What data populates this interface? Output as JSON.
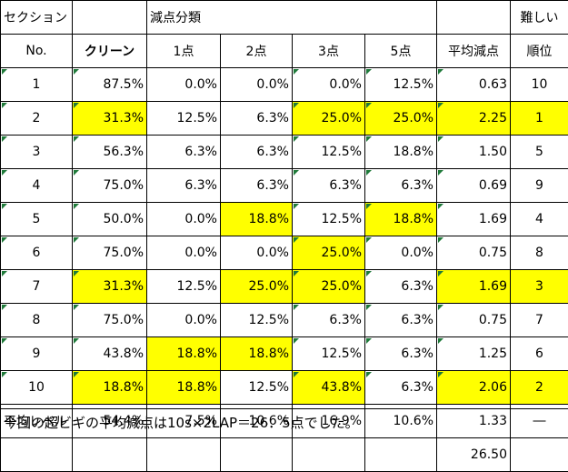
{
  "header": {
    "section": "セクション",
    "category": "減点分類",
    "difficulty": "難しい",
    "no": "No.",
    "clean": "クリーン",
    "p1": "1点",
    "p2": "2点",
    "p3": "3点",
    "p5": "5点",
    "avg": "平均減点",
    "rank": "順位"
  },
  "rows": [
    {
      "no": "1",
      "clean": "87.5%",
      "p1": "0.0%",
      "p2": "0.0%",
      "p3": "0.0%",
      "p5": "12.5%",
      "avg": "0.63",
      "rank": "10"
    },
    {
      "no": "2",
      "clean": "31.3%",
      "p1": "12.5%",
      "p2": "6.3%",
      "p3": "25.0%",
      "p5": "25.0%",
      "avg": "2.25",
      "rank": "1"
    },
    {
      "no": "3",
      "clean": "56.3%",
      "p1": "6.3%",
      "p2": "6.3%",
      "p3": "12.5%",
      "p5": "18.8%",
      "avg": "1.50",
      "rank": "5"
    },
    {
      "no": "4",
      "clean": "75.0%",
      "p1": "6.3%",
      "p2": "6.3%",
      "p3": "6.3%",
      "p5": "6.3%",
      "avg": "0.69",
      "rank": "9"
    },
    {
      "no": "5",
      "clean": "50.0%",
      "p1": "0.0%",
      "p2": "18.8%",
      "p3": "12.5%",
      "p5": "18.8%",
      "avg": "1.69",
      "rank": "4"
    },
    {
      "no": "6",
      "clean": "75.0%",
      "p1": "0.0%",
      "p2": "0.0%",
      "p3": "25.0%",
      "p5": "0.0%",
      "avg": "0.75",
      "rank": "8"
    },
    {
      "no": "7",
      "clean": "31.3%",
      "p1": "12.5%",
      "p2": "25.0%",
      "p3": "25.0%",
      "p5": "6.3%",
      "avg": "1.69",
      "rank": "3"
    },
    {
      "no": "8",
      "clean": "75.0%",
      "p1": "0.0%",
      "p2": "12.5%",
      "p3": "6.3%",
      "p5": "6.3%",
      "avg": "0.75",
      "rank": "7"
    },
    {
      "no": "9",
      "clean": "43.8%",
      "p1": "18.8%",
      "p2": "18.8%",
      "p3": "12.5%",
      "p5": "6.3%",
      "avg": "1.25",
      "rank": "6"
    },
    {
      "no": "10",
      "clean": "18.8%",
      "p1": "18.8%",
      "p2": "12.5%",
      "p3": "43.8%",
      "p5": "6.3%",
      "avg": "2.06",
      "rank": "2"
    }
  ],
  "average_row": {
    "label": "平均レベル",
    "clean": "54.4%",
    "p1": "7.5%",
    "p2": "10.6%",
    "p3": "16.9%",
    "p5": "10.6%",
    "avg": "1.33",
    "rank": "―"
  },
  "total": "26.50",
  "note": "今回の超ビギの平均減点は10s×2LAP＝26．5点でした。",
  "colors": {
    "highlight": "#ffff00",
    "grid": "#000000",
    "marker": "#1f7a3a"
  }
}
